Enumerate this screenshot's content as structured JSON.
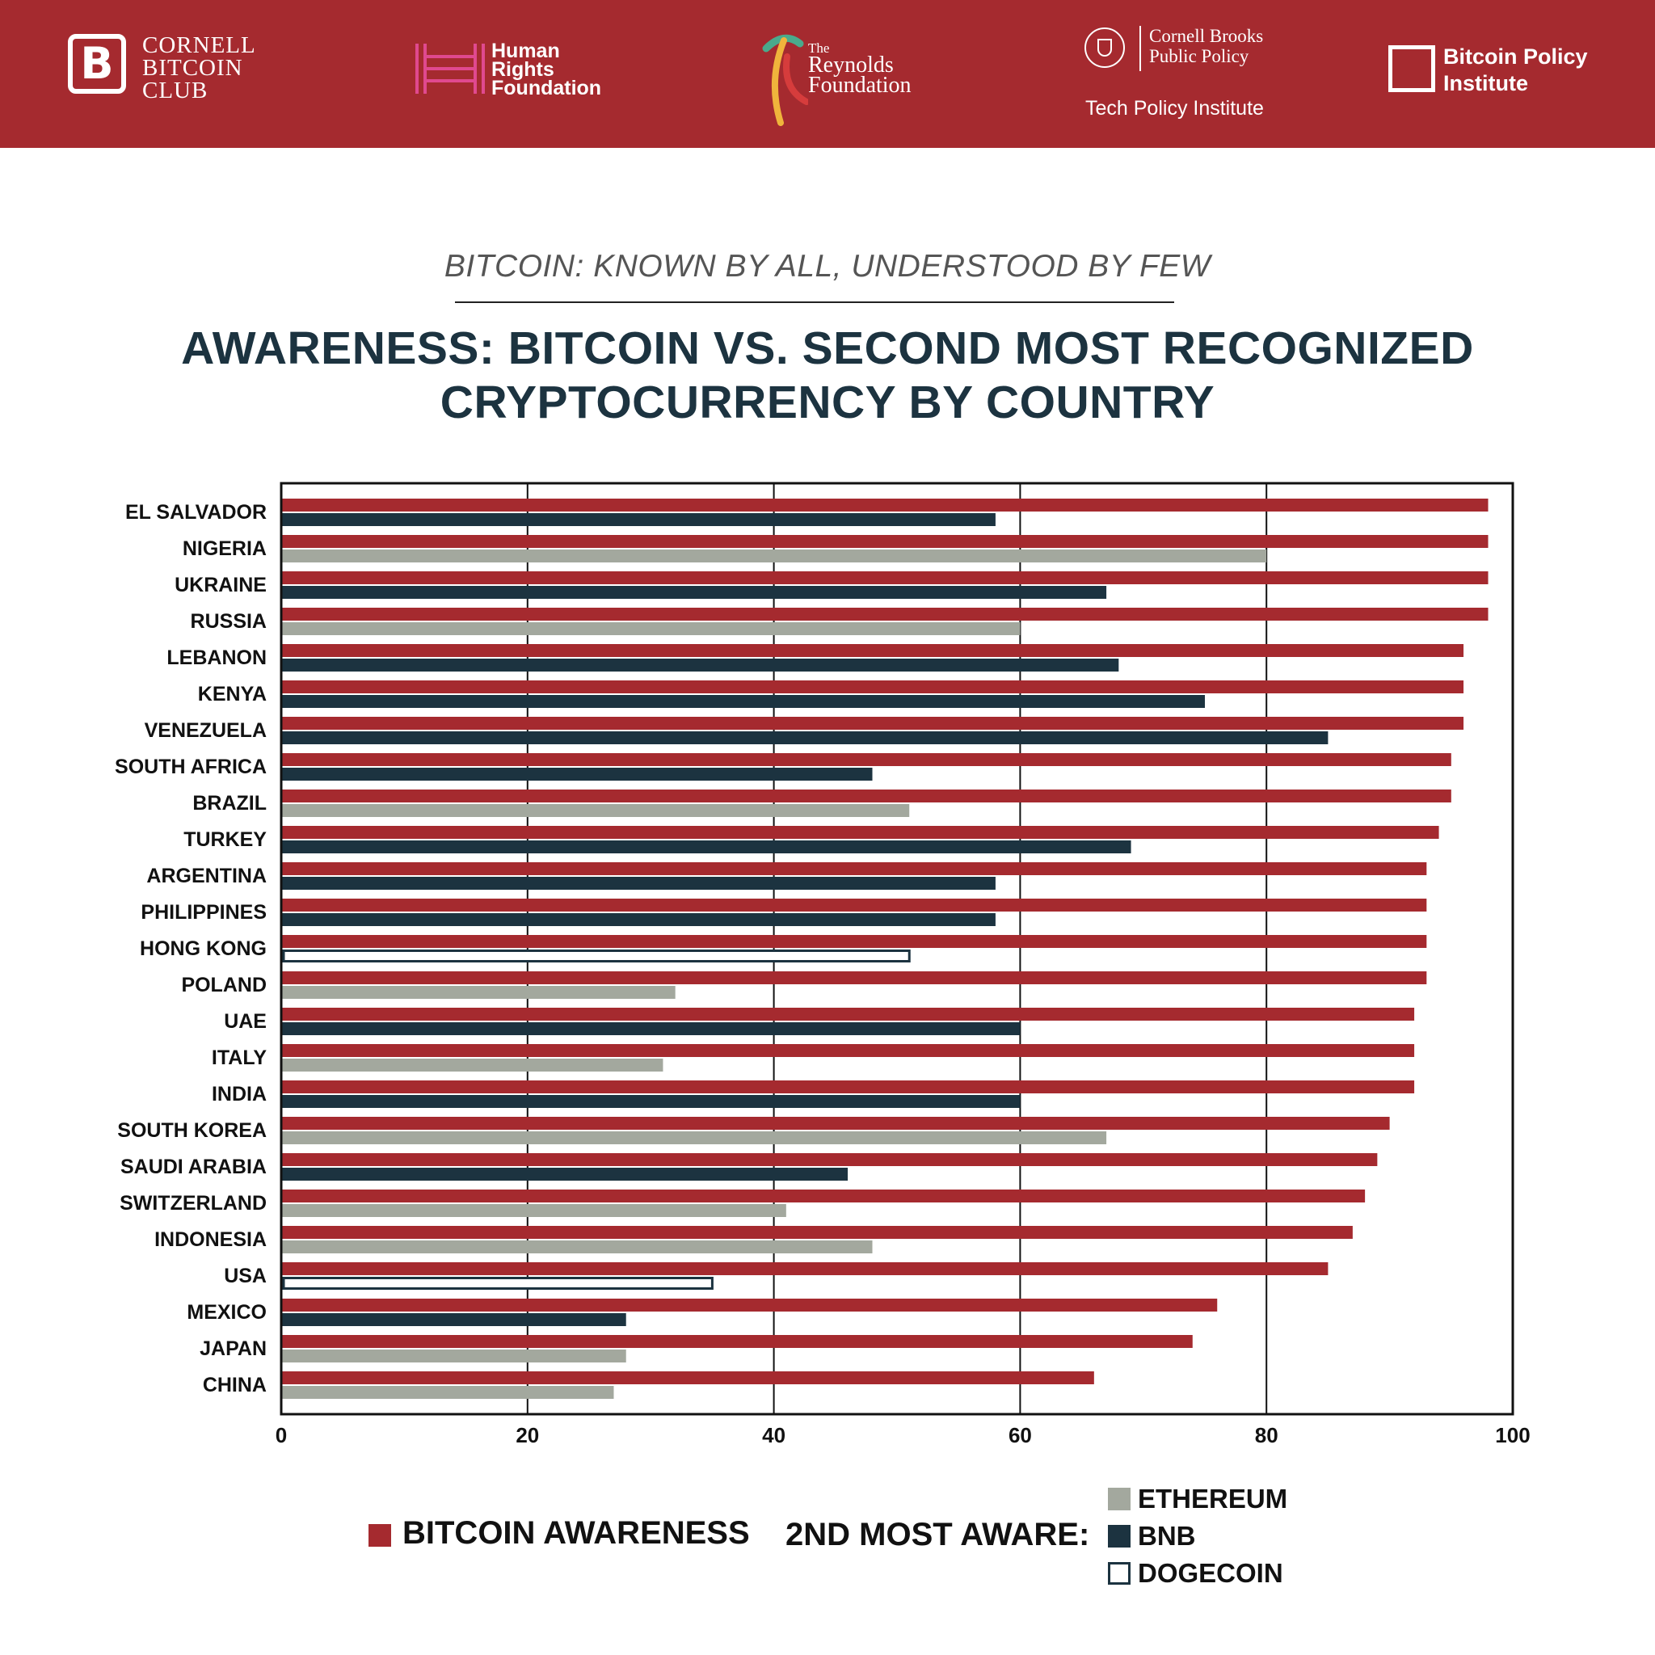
{
  "header": {
    "logos": [
      {
        "name": "cornell-bitcoin-club",
        "mark": "B",
        "text": "CORNELL\nBITCOIN\nCLUB"
      },
      {
        "name": "human-rights-foundation",
        "text": "Human\nRights\nFoundation"
      },
      {
        "name": "reynolds-foundation",
        "small": "The",
        "text": "Reynolds\nFoundation"
      },
      {
        "name": "cornell-brooks",
        "text": "Cornell Brooks\nPublic Policy",
        "sub": "Tech Policy Institute"
      },
      {
        "name": "bitcoin-policy-institute",
        "text": "Bitcoin Policy\nInstitute"
      }
    ]
  },
  "subtitle": "BITCOIN: KNOWN BY ALL, UNDERSTOOD BY FEW",
  "title": "AWARENESS: BITCOIN VS. SECOND MOST RECOGNIZED\nCRYPTOCURRENCY BY COUNTRY",
  "colors": {
    "banner": "#a52a2f",
    "bitcoin": "#a52a2f",
    "ethereum": "#a3a89e",
    "bnb": "#1c3340",
    "dogecoin": "#ffffff",
    "title": "#1c3340"
  },
  "chart_data": {
    "type": "bar",
    "orientation": "horizontal",
    "title": "AWARENESS: BITCOIN VS. SECOND MOST RECOGNIZED CRYPTOCURRENCY BY COUNTRY",
    "xlabel": "",
    "ylabel": "",
    "xlim": [
      0,
      100
    ],
    "xticks": [
      0,
      20,
      40,
      60,
      80,
      100
    ],
    "grid": "vertical",
    "categories": [
      "EL SALVADOR",
      "NIGERIA",
      "UKRAINE",
      "RUSSIA",
      "LEBANON",
      "KENYA",
      "VENEZUELA",
      "SOUTH AFRICA",
      "BRAZIL",
      "TURKEY",
      "ARGENTINA",
      "PHILIPPINES",
      "HONG KONG",
      "POLAND",
      "UAE",
      "ITALY",
      "INDIA",
      "SOUTH KOREA",
      "SAUDI ARABIA",
      "SWITZERLAND",
      "INDONESIA",
      "USA",
      "MEXICO",
      "JAPAN",
      "CHINA"
    ],
    "series": [
      {
        "name": "BITCOIN AWARENESS",
        "values": [
          98,
          98,
          98,
          98,
          96,
          96,
          96,
          95,
          95,
          94,
          93,
          93,
          93,
          93,
          92,
          92,
          92,
          90,
          89,
          88,
          87,
          85,
          76,
          74,
          66
        ]
      },
      {
        "name": "2ND MOST AWARE",
        "values": [
          58,
          80,
          67,
          60,
          68,
          75,
          85,
          48,
          51,
          69,
          58,
          58,
          51,
          32,
          60,
          31,
          60,
          67,
          46,
          41,
          48,
          35,
          28,
          28,
          27
        ],
        "coins": [
          "BNB",
          "ETHEREUM",
          "BNB",
          "ETHEREUM",
          "BNB",
          "BNB",
          "BNB",
          "BNB",
          "ETHEREUM",
          "BNB",
          "BNB",
          "BNB",
          "DOGECOIN",
          "ETHEREUM",
          "BNB",
          "ETHEREUM",
          "BNB",
          "ETHEREUM",
          "BNB",
          "ETHEREUM",
          "ETHEREUM",
          "DOGECOIN",
          "BNB",
          "ETHEREUM",
          "ETHEREUM"
        ]
      }
    ]
  },
  "legend": {
    "bitcoin": "BITCOIN AWARENESS",
    "second_label": "2ND MOST AWARE:",
    "ethereum": "ETHEREUM",
    "bnb": "BNB",
    "dogecoin": "DOGECOIN"
  }
}
